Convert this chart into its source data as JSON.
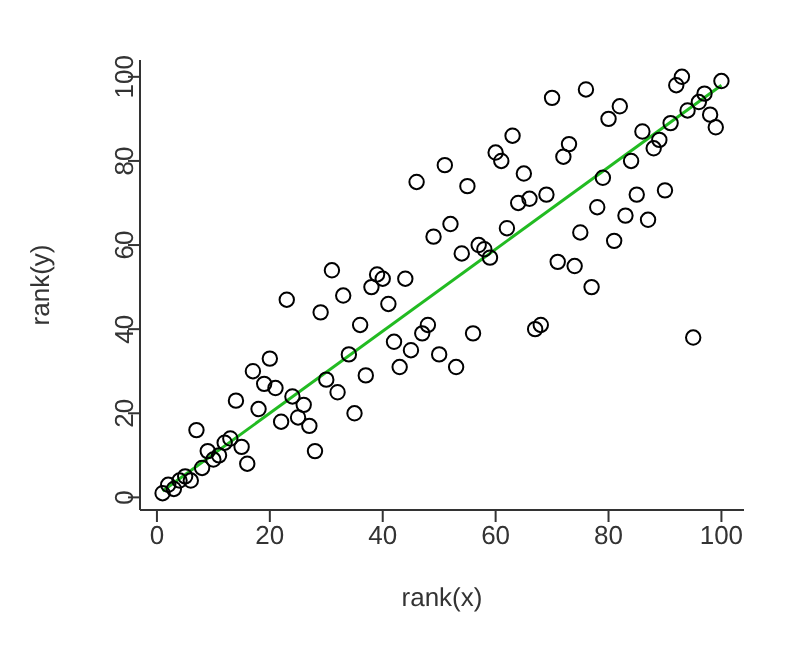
{
  "chart_data": {
    "type": "scatter",
    "xlabel": "rank(x)",
    "ylabel": "rank(y)",
    "xlim": [
      -3,
      104
    ],
    "ylim": [
      -3,
      104
    ],
    "xticks": [
      0,
      20,
      40,
      60,
      80,
      100
    ],
    "yticks": [
      0,
      20,
      40,
      60,
      80,
      100
    ],
    "marker": "circle",
    "x": [
      1,
      2,
      3,
      4,
      5,
      6,
      7,
      8,
      9,
      10,
      11,
      12,
      13,
      14,
      15,
      16,
      17,
      18,
      19,
      20,
      21,
      22,
      23,
      24,
      25,
      26,
      27,
      28,
      29,
      30,
      31,
      32,
      33,
      34,
      35,
      36,
      37,
      38,
      39,
      40,
      41,
      42,
      43,
      44,
      45,
      46,
      47,
      48,
      49,
      50,
      51,
      52,
      53,
      54,
      55,
      56,
      57,
      58,
      59,
      60,
      61,
      62,
      63,
      64,
      65,
      66,
      67,
      68,
      69,
      70,
      71,
      72,
      73,
      74,
      75,
      76,
      77,
      78,
      79,
      80,
      81,
      82,
      83,
      84,
      85,
      86,
      87,
      88,
      89,
      90,
      91,
      92,
      93,
      94,
      95,
      96,
      97,
      98,
      99,
      100
    ],
    "series": [
      {
        "color": "#000000",
        "values": [
          1,
          3,
          2,
          4,
          5,
          4,
          16,
          7,
          11,
          9,
          10,
          13,
          14,
          23,
          12,
          8,
          30,
          21,
          27,
          33,
          26,
          18,
          47,
          24,
          19,
          22,
          17,
          11,
          44,
          28,
          54,
          25,
          48,
          34,
          20,
          41,
          29,
          50,
          53,
          52,
          46,
          37,
          31,
          52,
          35,
          75,
          39,
          41,
          62,
          34,
          79,
          65,
          31,
          58,
          74,
          39,
          60,
          59,
          57,
          82,
          80,
          64,
          86,
          70,
          77,
          71,
          40,
          41,
          72,
          95,
          56,
          81,
          84,
          55,
          63,
          97,
          50,
          69,
          76,
          90,
          61,
          93,
          67,
          80,
          72,
          87,
          66,
          83,
          85,
          73,
          89,
          98,
          100,
          92,
          38,
          94,
          96,
          91,
          88,
          99
        ]
      },
      {
        "type": "line",
        "color": "#22bb22",
        "x": [
          1,
          100
        ],
        "values": [
          1.5,
          98
        ],
        "marker": "none",
        "line_style": "solid"
      }
    ]
  }
}
